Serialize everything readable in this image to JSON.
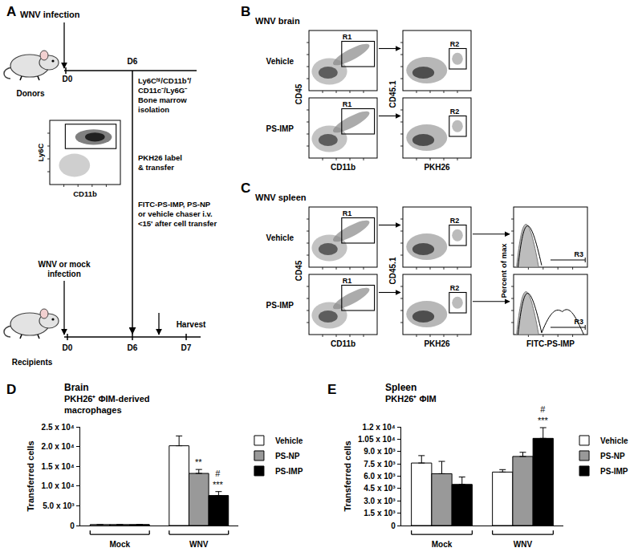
{
  "figure": {
    "A": {
      "panel": "A",
      "infection": "WNV infection",
      "donors": "Donors",
      "top_timeline": {
        "start": "D0",
        "transfer_day": "D6"
      },
      "isolation": [
        "Ly6Cʰⁱ/CD11b⁺/",
        "CD11c⁻/Ly6G⁻",
        "Bone marrow",
        "isolation"
      ],
      "flow_y": "Ly6C",
      "flow_x": "CD11b",
      "transfer": [
        "PKH26 label",
        "& transfer"
      ],
      "chaser": [
        "FITC-PS-IMP, PS-NP",
        "or vehicle chaser i.v.",
        "<15' after cell transfer"
      ],
      "recipient_infection": [
        "WNV or mock",
        "infection"
      ],
      "recipients": "Recipients",
      "timeline": [
        "D0",
        "D6",
        "D7"
      ],
      "harvest": "Harvest"
    },
    "B": {
      "panel": "B",
      "title": "WNV brain",
      "rows": [
        "Vehicle",
        "PS-IMP"
      ],
      "axes": {
        "y1": "CD45",
        "x1": "CD11b",
        "y2": "CD45.1",
        "x2": "PKH26"
      },
      "gates": [
        "R1",
        "R2"
      ]
    },
    "C": {
      "panel": "C",
      "title": "WNV spleen",
      "rows": [
        "Vehicle",
        "PS-IMP"
      ],
      "axes": {
        "y1": "CD45",
        "x1": "CD11b",
        "y2": "CD45.1",
        "x2": "PKH26",
        "y3": "Percent of max",
        "x3": "FITC-PS-IMP"
      },
      "gates": [
        "R1",
        "R2",
        "R3"
      ]
    }
  },
  "chart_data": [
    {
      "type": "bar",
      "panel": "D",
      "title": "Brain",
      "subtitle": [
        "PKH26⁺ ΦIM-derived",
        "macrophages"
      ],
      "y_label": "Transferred cells",
      "categories": [
        "Mock",
        "WNV"
      ],
      "series": [
        {
          "name": "Vehicle",
          "color": "#ffffff",
          "values": [
            250,
            20200
          ],
          "errors": [
            50,
            2500
          ]
        },
        {
          "name": "PS-NP",
          "color": "#999999",
          "values": [
            250,
            13200
          ],
          "errors": [
            50,
            1000
          ]
        },
        {
          "name": "PS-IMP",
          "color": "#000000",
          "values": [
            250,
            7600
          ],
          "errors": [
            50,
            1000
          ]
        }
      ],
      "ylim": [
        0,
        25000
      ],
      "yticks": [
        0,
        {
          "value": 5000,
          "label": "5.0 x 10³"
        },
        {
          "value": 10000,
          "label": "1.0 x 10⁴"
        },
        {
          "value": 15000,
          "label": "1.5 x 10⁴"
        },
        {
          "value": 20000,
          "label": "2.0 x 10⁴"
        },
        {
          "value": 25000,
          "label": "2.5 x 10⁴"
        }
      ],
      "grid": false,
      "legend": "right",
      "annotations": [
        {
          "category": "WNV",
          "series": "PS-NP",
          "lines": [
            "**"
          ]
        },
        {
          "category": "WNV",
          "series": "PS-IMP",
          "lines": [
            "#",
            "***"
          ]
        }
      ]
    },
    {
      "type": "bar",
      "panel": "E",
      "title": "Spleen",
      "subtitle": [
        "PKH26⁺ ΦIM"
      ],
      "y_label": "Transferred cells",
      "categories": [
        "Mock",
        "WNV"
      ],
      "series": [
        {
          "name": "Vehicle",
          "color": "#ffffff",
          "values": [
            7600,
            6500
          ],
          "errors": [
            900,
            300
          ]
        },
        {
          "name": "PS-NP",
          "color": "#999999",
          "values": [
            6300,
            8400
          ],
          "errors": [
            1500,
            500
          ]
        },
        {
          "name": "PS-IMP",
          "color": "#000000",
          "values": [
            5000,
            10600
          ],
          "errors": [
            900,
            1300
          ]
        }
      ],
      "ylim": [
        0,
        12000
      ],
      "yticks": [
        0,
        {
          "value": 1500,
          "label": "1.5 x 10³"
        },
        {
          "value": 3000,
          "label": "3.0 x 10³"
        },
        {
          "value": 4500,
          "label": "4.5 x 10³"
        },
        {
          "value": 6000,
          "label": "6.0 x 10³"
        },
        {
          "value": 7500,
          "label": "7.5 x 10³"
        },
        {
          "value": 9000,
          "label": "9.0 x 10³"
        },
        {
          "value": 10500,
          "label": "1.05 x 10⁴"
        },
        {
          "value": 12000,
          "label": "1.2 x 10⁴"
        }
      ],
      "grid": false,
      "legend": "right",
      "annotations": [
        {
          "category": "WNV",
          "series": "PS-IMP",
          "lines": [
            "#",
            "***"
          ]
        }
      ]
    }
  ]
}
